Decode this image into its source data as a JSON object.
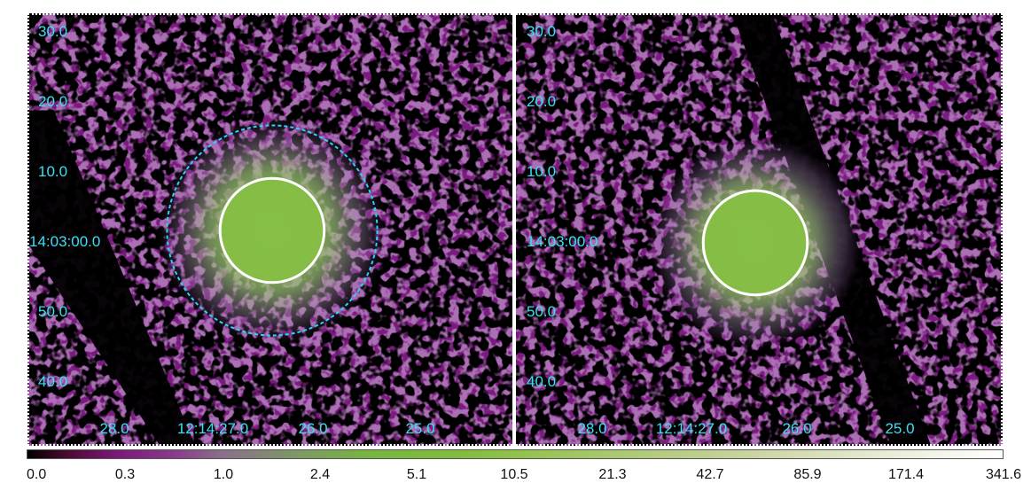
{
  "panels": [
    {
      "id": "left",
      "dec_labels": [
        "30.0",
        "20.0",
        "10.0",
        "14:03:00.0",
        "50.0",
        "40.0"
      ],
      "ra_labels": [
        "28.0",
        "12:14:27.0",
        "26.0",
        "25.0"
      ],
      "regions": [
        "solid-white-circle",
        "dashed-cyan-circle"
      ]
    },
    {
      "id": "right",
      "dec_labels": [
        "30.0",
        "20.0",
        "10.0",
        "14:03:00.0",
        "50.0",
        "40.0"
      ],
      "ra_labels": [
        "28.0",
        "12:14:27.0",
        "26.0",
        "25.0"
      ],
      "regions": [
        "solid-white-circle"
      ]
    }
  ],
  "colorbar": {
    "labels": [
      "0.0",
      "0.3",
      "1.0",
      "2.4",
      "5.1",
      "10.5",
      "21.3",
      "42.7",
      "85.9",
      "171.4",
      "341.6"
    ]
  },
  "colors": {
    "label": "#38e0f2",
    "background": "#7a1a7e",
    "source": "#8fc24a",
    "region_solid": "#ffffff",
    "region_dashed": "#2ad4ff"
  }
}
